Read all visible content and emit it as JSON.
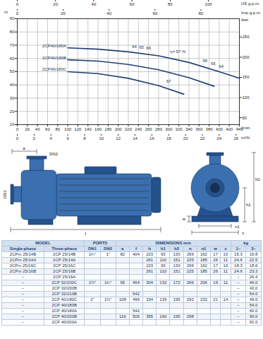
{
  "chart_data": {
    "type": "line",
    "y_label": "m",
    "y2_label": "feet",
    "x_label": "l/min",
    "xlim": [
      0,
      440
    ],
    "xticks": [
      0,
      20,
      40,
      60,
      80,
      100,
      120,
      140,
      160,
      180,
      200,
      220,
      240,
      260,
      280,
      300,
      320,
      340,
      360,
      380,
      400,
      420,
      440
    ],
    "ylim": [
      10,
      90
    ],
    "yticks": [
      10,
      20,
      30,
      40,
      50,
      60,
      70,
      80,
      90
    ],
    "y2lim": [
      32.8,
      295.3
    ],
    "y2ticks": [
      50,
      100,
      150,
      200,
      250
    ],
    "grid": true,
    "top_axes": [
      {
        "label": "US g.p.m.",
        "lim": [
          0,
          116.2
        ],
        "ticks": [
          0,
          20,
          40,
          60,
          80,
          100
        ]
      },
      {
        "label": "Imp g.p.m.",
        "lim": [
          0,
          96.8
        ],
        "ticks": [
          0,
          20,
          40,
          60,
          80
        ]
      }
    ],
    "bottom_axes": [
      {
        "label": "m³/h",
        "lim": [
          0,
          26.4
        ],
        "ticks": [
          0,
          2,
          4,
          6,
          8,
          10,
          12,
          14,
          16,
          18,
          20,
          22,
          24,
          26
        ]
      }
    ],
    "series": [
      {
        "name": "2CP40/180A",
        "color": "#1f3f73",
        "x": [
          100,
          160,
          220,
          280,
          340,
          400,
          440
        ],
        "values": [
          68,
          67,
          65,
          62,
          57,
          50,
          45
        ]
      },
      {
        "name": "2CP40/180B",
        "color": "#1f3f73",
        "x": [
          100,
          160,
          220,
          280,
          340,
          390
        ],
        "values": [
          59,
          58,
          55.5,
          51.5,
          45.5,
          39
        ]
      },
      {
        "name": "2CP40/180C",
        "color": "#1f3f73",
        "x": [
          100,
          160,
          220,
          280,
          330
        ],
        "values": [
          50,
          48.5,
          45,
          39.5,
          33
        ]
      }
    ],
    "annotations": [
      {
        "text": "64",
        "x": 232,
        "y": 69
      },
      {
        "text": "65",
        "x": 246,
        "y": 68.5
      },
      {
        "text": "66",
        "x": 260,
        "y": 68
      },
      {
        "text": "η= 57 %",
        "x": 318,
        "y": 65
      },
      {
        "text": "66",
        "x": 372,
        "y": 58
      },
      {
        "text": "65",
        "x": 388,
        "y": 56
      },
      {
        "text": "64",
        "x": 404,
        "y": 54
      },
      {
        "text": "67",
        "x": 300,
        "y": 43
      }
    ]
  },
  "drawing": {
    "side_view": {
      "labels": [
        "DN2",
        "DN1",
        "a",
        "f"
      ]
    },
    "front_view": {
      "labels": [
        "h2",
        "h1",
        "n1",
        "n",
        "w"
      ]
    }
  },
  "table": {
    "header_groups": [
      "MODEL",
      "PORTS",
      "DIMENSIONS mm",
      "kg"
    ],
    "columns": [
      "Single-phase",
      "Three-phase",
      "DN1",
      "DN2",
      "a",
      "f",
      "h",
      "h1",
      "h2",
      "n",
      "n1",
      "w",
      "s",
      "1~",
      "3~"
    ],
    "rows": [
      [
        "2CPm 25/14B",
        "2CP 25/14B",
        "1¼\"",
        "1\"",
        "82",
        "404",
        "223",
        "93",
        "130",
        "269",
        "162",
        "17",
        "10",
        "15.3",
        "16.8"
      ],
      [
        "2CPm 25/14A",
        "2CP 25/14A",
        null,
        null,
        null,
        null,
        "261",
        "110",
        "151",
        "225",
        "185",
        "26",
        "11",
        "24.6",
        "22.5"
      ],
      [
        "2CPm 25/16C",
        "2CP 25/16C",
        null,
        null,
        null,
        null,
        "223",
        "93",
        "130",
        "269",
        "162",
        "17",
        "10",
        "18.3",
        "18.6"
      ],
      [
        "2CPm 25/16B",
        "2CP 25/16B",
        null,
        null,
        null,
        null,
        "261",
        "110",
        "151",
        "225",
        "185",
        "26",
        "11",
        "24.6",
        "23.3"
      ],
      [
        "–",
        "2CP 25/16A",
        null,
        null,
        null,
        null,
        null,
        null,
        null,
        null,
        null,
        null,
        null,
        "–",
        "26.4"
      ],
      [
        "–",
        "2CP 32/200C",
        "1½\"",
        "1¼\"",
        "95",
        "464",
        "304",
        "132",
        "172",
        "266",
        "206",
        "19",
        "11",
        "–",
        "40.0"
      ],
      [
        "–",
        "2CP 32/200B",
        null,
        null,
        null,
        null,
        null,
        null,
        null,
        null,
        null,
        null,
        null,
        "–",
        "42.0"
      ],
      [
        "–",
        "2CP 32/210B",
        null,
        null,
        null,
        "542",
        null,
        null,
        null,
        null,
        null,
        null,
        null,
        "–",
        "54.0"
      ],
      [
        "–",
        "2CP 40/180C",
        "2\"",
        "1½\"",
        "108",
        "496",
        "334",
        "139",
        "195",
        "292",
        "232",
        "21",
        "14",
        "–",
        "49.0"
      ],
      [
        "–",
        "2CP 40/180B",
        null,
        null,
        null,
        null,
        null,
        null,
        null,
        null,
        null,
        null,
        null,
        "–",
        "54.0"
      ],
      [
        "–",
        "2CP 40/180A",
        null,
        null,
        null,
        "542",
        null,
        null,
        null,
        null,
        null,
        null,
        null,
        "–",
        "60.0"
      ],
      [
        "–",
        "2CP 40/200B",
        null,
        null,
        "119",
        "506",
        "355",
        "160",
        "195",
        "298",
        null,
        null,
        null,
        "–",
        "90.0"
      ],
      [
        "–",
        "2CP 40/200A",
        null,
        null,
        null,
        null,
        null,
        null,
        null,
        null,
        null,
        null,
        null,
        "–",
        "91.0"
      ]
    ]
  }
}
